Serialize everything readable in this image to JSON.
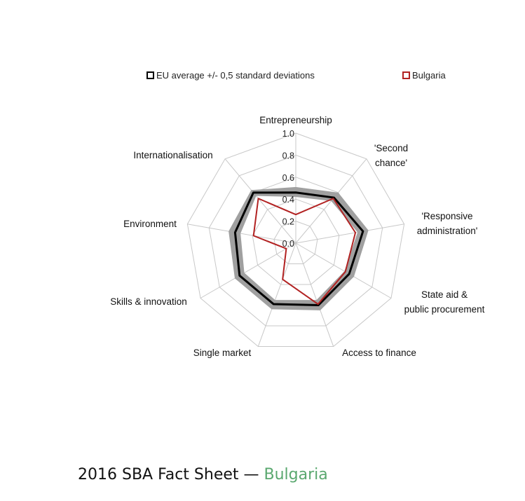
{
  "chart_data": {
    "type": "radar",
    "categories": [
      "Entrepreneurship",
      "'Second chance'",
      "'Responsive administration'",
      "State aid & public procurement",
      "Access to finance",
      "Single market",
      "Skills & innovation",
      "Environment",
      "Internationalisation"
    ],
    "rlim": [
      0,
      1
    ],
    "ticks": [
      "0.0",
      "0.2",
      "0.4",
      "0.6",
      "0.8",
      "1.0"
    ],
    "legend": {
      "eu_label": "EU average +/- 0,5 standard deviations",
      "country_label": "Bulgaria",
      "placement": "top"
    },
    "series": [
      {
        "name": "EU average +/- 0,5 standard deviations",
        "role": "average",
        "values": [
          0.46,
          0.54,
          0.62,
          0.56,
          0.6,
          0.59,
          0.59,
          0.56,
          0.6
        ]
      },
      {
        "name": "EU average +/- 0,5 standard deviations",
        "role": "band-low",
        "values": [
          0.42,
          0.5,
          0.57,
          0.51,
          0.55,
          0.55,
          0.54,
          0.51,
          0.56
        ]
      },
      {
        "name": "EU average +/- 0,5 standard deviations",
        "role": "band-high",
        "values": [
          0.51,
          0.6,
          0.67,
          0.61,
          0.65,
          0.64,
          0.64,
          0.62,
          0.63
        ]
      },
      {
        "name": "Bulgaria",
        "role": "country",
        "values": [
          0.26,
          0.53,
          0.55,
          0.52,
          0.59,
          0.35,
          0.1,
          0.39,
          0.53
        ]
      }
    ],
    "colors": {
      "band": "#a0a0a0",
      "average": "#000000",
      "country": "#b22222",
      "grid": "#c8c8c8"
    }
  },
  "footer": {
    "title": "2016 SBA Fact Sheet — ",
    "country": "Bulgaria"
  }
}
